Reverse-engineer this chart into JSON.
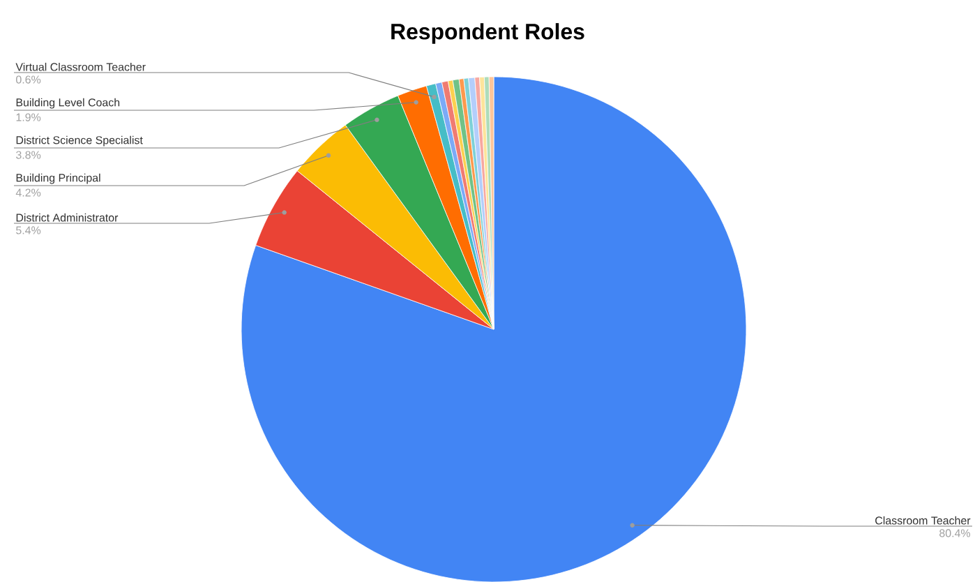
{
  "chart_data": {
    "type": "pie",
    "title": "Respondent Roles",
    "categories": [
      "Classroom Teacher",
      "District Administrator",
      "Building Principal",
      "District Science Specialist",
      "Building Level Coach",
      "Virtual Classroom Teacher",
      null,
      null,
      null,
      null,
      null,
      null,
      null,
      null,
      null,
      null,
      null
    ],
    "values": [
      80.4,
      5.4,
      4.2,
      3.8,
      1.9,
      0.6,
      0.4,
      0.4,
      0.3,
      0.4,
      0.3,
      0.3,
      0.4,
      0.3,
      0.3,
      0.3,
      0.3
    ],
    "value_labels": [
      "80.4%",
      "5.4%",
      "4.2%",
      "3.8%",
      "1.9%",
      "0.6%",
      null,
      null,
      null,
      null,
      null,
      null,
      null,
      null,
      null,
      null,
      null
    ],
    "colors": [
      "#4285f4",
      "#ea4335",
      "#fbbc04",
      "#34a853",
      "#ff6d01",
      "#46bdc6",
      "#7baaf7",
      "#f07b72",
      "#fcd04f",
      "#71c287",
      "#ff994d",
      "#7ed1d7",
      "#b3cefb",
      "#f7a7a0",
      "#fde49b",
      "#aedcba",
      "#ffc599"
    ]
  }
}
